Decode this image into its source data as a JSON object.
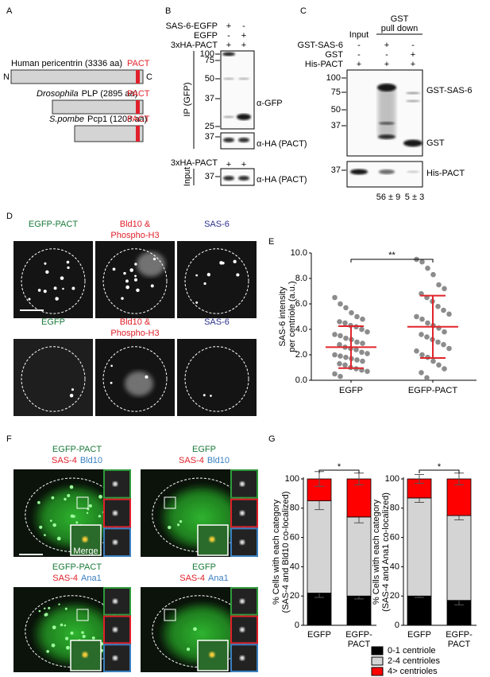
{
  "figure": {
    "A": {
      "letter": "A",
      "n": "N",
      "c": "C",
      "proteins": [
        {
          "name": "Human pericentrin (3336 aa)",
          "domain": "PACT"
        },
        {
          "species": "Drosophila",
          "name": "PLP (2895 aa)",
          "domain": "PACT"
        },
        {
          "species": "S.pombe",
          "name": "Pcp1 (1208 aa)",
          "domain": "PACT"
        }
      ]
    },
    "B": {
      "letter": "B",
      "rows": [
        {
          "label": "SAS-6-EGFP",
          "signs": [
            "+",
            "-"
          ]
        },
        {
          "label": "EGFP",
          "signs": [
            "-",
            "+"
          ]
        },
        {
          "label": "3xHA-PACT",
          "signs": [
            "+",
            "+"
          ]
        }
      ],
      "ip_label": "IP (GFP)",
      "markers_ip": [
        "100",
        "75",
        "50",
        "37",
        "25"
      ],
      "antibody_gfp": "α-GFP",
      "markers_ha": [
        "37"
      ],
      "antibody_ha": "α-HA (PACT)",
      "input_row": {
        "label": "3xHA-PACT",
        "signs": [
          "+",
          "+"
        ]
      },
      "input_label": "Input",
      "markers_input": [
        "37"
      ],
      "antibody_input": "α-HA (PACT)"
    },
    "C": {
      "letter": "C",
      "input": "Input",
      "pulldown": [
        "GST",
        "pull down"
      ],
      "rows": [
        {
          "label": "GST-SAS-6",
          "signs": [
            "-",
            "+",
            "-"
          ]
        },
        {
          "label": "GST",
          "signs": [
            "-",
            "-",
            "+"
          ]
        },
        {
          "label": "His-PACT",
          "signs": [
            "+",
            "+",
            "+"
          ]
        }
      ],
      "markers": [
        "100",
        "75",
        "50",
        "37"
      ],
      "band_labels": [
        "GST-SAS-6",
        "GST"
      ],
      "markers_his": [
        "37"
      ],
      "his_label": "His-PACT",
      "quantification": [
        "56 ± 9",
        "5 ± 3"
      ]
    },
    "D": {
      "letter": "D",
      "rows": [
        {
          "labels": [
            [
              "EGFP-PACT"
            ],
            [
              "Bld10 &",
              "Phospho-H3"
            ],
            [
              "SAS-6"
            ]
          ]
        },
        {
          "labels": [
            [
              "EGFP"
            ],
            [
              "Bld10 &",
              "Phospho-H3"
            ],
            [
              "SAS-6"
            ]
          ]
        }
      ]
    },
    "E": {
      "letter": "E"
    },
    "F": {
      "letter": "F",
      "merge_label": "Merge",
      "images": [
        {
          "title": "EGFP-PACT",
          "channels": [
            "SAS-4",
            "Bld10"
          ]
        },
        {
          "title": "EGFP",
          "channels": [
            "SAS-4",
            "Bld10"
          ]
        },
        {
          "title": "EGFP-PACT",
          "channels": [
            "SAS-4",
            "Ana1"
          ]
        },
        {
          "title": "EGFP",
          "channels": [
            "SAS-4",
            "Ana1"
          ]
        }
      ]
    },
    "G": {
      "letter": "G"
    }
  },
  "chart_data": [
    {
      "type": "dotplot",
      "ylabel": [
        "SAS-6 intensity",
        "per centriole (a.u.)"
      ],
      "categories": [
        "EGFP",
        "EGFP-PACT"
      ],
      "points": [
        [
          6.5,
          6.0,
          5.7,
          5.3,
          5.0,
          4.8,
          4.6,
          4.5,
          4.3,
          4.2,
          4.0,
          3.8,
          3.6,
          3.5,
          3.3,
          3.2,
          3.0,
          2.9,
          2.8,
          2.6,
          2.5,
          2.4,
          2.2,
          2.1,
          2.0,
          1.9,
          1.8,
          1.7,
          1.6,
          1.5,
          1.3,
          1.2,
          1.0,
          0.9,
          0.8,
          0.7,
          0.5,
          0.3
        ],
        [
          9.5,
          9.3,
          8.8,
          8.3,
          7.5,
          7.2,
          6.8,
          6.5,
          6.2,
          5.8,
          5.5,
          5.2,
          5.0,
          4.8,
          4.5,
          4.3,
          4.1,
          3.8,
          3.6,
          3.4,
          3.2,
          3.0,
          2.8,
          2.5,
          2.3,
          2.0,
          1.8,
          1.5,
          1.2,
          0.9,
          0.6,
          0.2
        ]
      ],
      "mean": [
        2.6,
        4.2
      ],
      "sd": [
        1.65,
        2.45
      ],
      "point_color": "#8c8c8c",
      "summary_color": "#e0252b",
      "ylim": [
        0,
        10
      ],
      "yticks": [
        {
          "value": 0,
          "label": "0.0"
        },
        {
          "value": 2,
          "label": "2.0"
        },
        {
          "value": 4,
          "label": "4.0"
        },
        {
          "value": 6,
          "label": "6.0"
        },
        {
          "value": 8,
          "label": "8.0"
        },
        {
          "value": 10,
          "label": "10.0"
        }
      ],
      "significance": "**"
    },
    {
      "type": "stacked-bar",
      "categories": [
        [
          "EGFP"
        ],
        [
          "EGFP-",
          "PACT"
        ]
      ],
      "series": [
        {
          "name": "0-1 centriole",
          "color": "#000000"
        },
        {
          "name": "2-4 centrioles",
          "color": "#d4d4d4"
        },
        {
          "name": "4> centrioles",
          "color": "#ff0000"
        }
      ],
      "ylim": [
        0,
        100
      ],
      "yticks": [
        0,
        20,
        40,
        60,
        80,
        100
      ],
      "panels": [
        {
          "ylabel": [
            "% Cells with each category",
            "(SAS-4 and  Bld10 co-localized)"
          ],
          "values": [
            [
              22,
              20
            ],
            [
              63,
              54
            ],
            [
              15,
              26
            ]
          ],
          "errors": [
            [
              3,
              2
            ],
            [
              6,
              4
            ],
            [
              5,
              4
            ]
          ],
          "significance": "*"
        },
        {
          "ylabel": [
            "% Cells with each category",
            "(SAS-4 and  Ana1 co-localized)"
          ],
          "values": [
            [
              20,
              17
            ],
            [
              67,
              58
            ],
            [
              13,
              25
            ]
          ],
          "errors": [
            [
              1,
              3
            ],
            [
              3,
              3
            ],
            [
              3,
              4
            ]
          ],
          "significance": "*"
        }
      ]
    }
  ]
}
